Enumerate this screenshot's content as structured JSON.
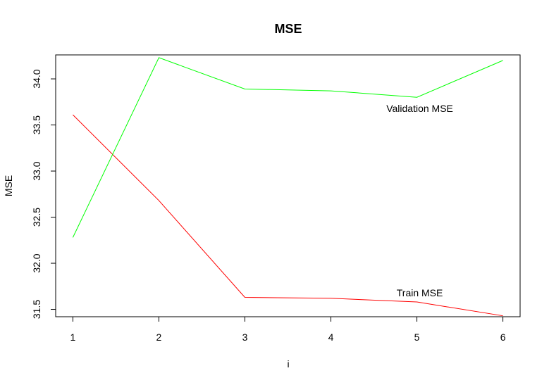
{
  "chart_data": {
    "type": "line",
    "title": "MSE",
    "xlabel": "i",
    "ylabel": "MSE",
    "x": [
      1,
      2,
      3,
      4,
      5,
      6
    ],
    "xticks": [
      "1",
      "2",
      "3",
      "4",
      "5",
      "6"
    ],
    "yticks": [
      "31.5",
      "32.0",
      "32.5",
      "33.0",
      "33.5",
      "34.0"
    ],
    "xlim": [
      0.8,
      6.2
    ],
    "ylim": [
      31.42,
      34.26
    ],
    "grid": false,
    "series": [
      {
        "name": "Train MSE",
        "color": "#ff0000",
        "values": [
          33.61,
          32.68,
          31.63,
          31.62,
          31.58,
          31.43
        ]
      },
      {
        "name": "Validation MSE",
        "color": "#00ff00",
        "values": [
          32.28,
          34.23,
          33.89,
          33.87,
          33.8,
          34.2
        ]
      }
    ],
    "annotations": [
      {
        "text": "Validation MSE",
        "x": 5.0,
        "y": 33.68
      },
      {
        "text": "Train MSE",
        "x": 5.0,
        "y": 31.68
      }
    ]
  }
}
